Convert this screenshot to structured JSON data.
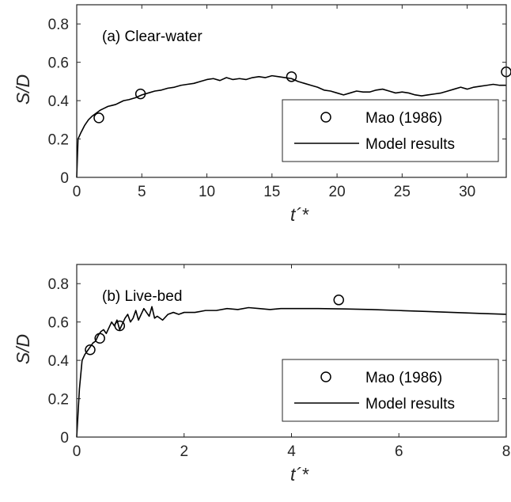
{
  "chart_data": [
    {
      "type": "line",
      "annotation": "(a) Clear-water",
      "xlabel": "t´*",
      "ylabel": "S/D",
      "xlim": [
        0,
        33
      ],
      "ylim": [
        0,
        0.9
      ],
      "xticks": [
        0,
        5,
        10,
        15,
        20,
        25,
        30
      ],
      "yticks": [
        0,
        0.2,
        0.4,
        0.6,
        0.8
      ],
      "legend_position": "lower-right",
      "series": [
        {
          "name": "Mao (1986)",
          "marker": "circle",
          "x": [
            1.7,
            4.9,
            16.5,
            33.0
          ],
          "y": [
            0.31,
            0.435,
            0.525,
            0.55
          ]
        },
        {
          "name": "Model results",
          "marker": "line",
          "x": [
            0,
            0.1,
            0.3,
            0.6,
            0.9,
            1.2,
            1.5,
            1.8,
            2.1,
            2.4,
            2.7,
            3.0,
            3.3,
            3.6,
            4.0,
            4.5,
            5.0,
            5.5,
            6.0,
            6.5,
            7.0,
            7.5,
            8.0,
            8.5,
            9.0,
            9.5,
            10.0,
            10.5,
            11.0,
            11.5,
            12.0,
            12.5,
            13.0,
            13.5,
            14.0,
            14.5,
            15.0,
            15.5,
            16.0,
            16.5,
            17.0,
            17.5,
            18.0,
            18.5,
            19.0,
            19.5,
            20.0,
            20.5,
            21.0,
            21.5,
            22.0,
            22.5,
            23.0,
            23.5,
            24.0,
            24.5,
            25.0,
            25.5,
            26.0,
            26.5,
            27.0,
            27.5,
            28.0,
            28.5,
            29.0,
            29.5,
            30.0,
            30.5,
            31.0,
            31.5,
            32.0,
            32.5,
            33.0
          ],
          "y": [
            0,
            0.2,
            0.23,
            0.27,
            0.3,
            0.32,
            0.335,
            0.35,
            0.36,
            0.37,
            0.375,
            0.38,
            0.39,
            0.4,
            0.405,
            0.415,
            0.43,
            0.44,
            0.45,
            0.455,
            0.465,
            0.47,
            0.48,
            0.485,
            0.49,
            0.5,
            0.51,
            0.515,
            0.505,
            0.52,
            0.51,
            0.515,
            0.51,
            0.52,
            0.525,
            0.52,
            0.53,
            0.525,
            0.52,
            0.515,
            0.5,
            0.49,
            0.48,
            0.47,
            0.455,
            0.45,
            0.44,
            0.43,
            0.44,
            0.45,
            0.445,
            0.445,
            0.455,
            0.46,
            0.45,
            0.44,
            0.445,
            0.44,
            0.43,
            0.425,
            0.43,
            0.435,
            0.44,
            0.45,
            0.46,
            0.47,
            0.46,
            0.47,
            0.475,
            0.48,
            0.485,
            0.48,
            0.48
          ]
        }
      ]
    },
    {
      "type": "line",
      "annotation": "(b) Live-bed",
      "xlabel": "t´*",
      "ylabel": "S/D",
      "xlim": [
        0,
        8
      ],
      "ylim": [
        0,
        0.9
      ],
      "xticks": [
        0,
        2,
        4,
        6,
        8
      ],
      "yticks": [
        0,
        0.2,
        0.4,
        0.6,
        0.8
      ],
      "legend_position": "lower-right",
      "series": [
        {
          "name": "Mao (1986)",
          "marker": "circle",
          "x": [
            0.25,
            0.43,
            0.8,
            4.88
          ],
          "y": [
            0.455,
            0.515,
            0.58,
            0.715
          ]
        },
        {
          "name": "Model results",
          "marker": "line",
          "x": [
            0,
            0.05,
            0.1,
            0.15,
            0.2,
            0.25,
            0.3,
            0.35,
            0.4,
            0.45,
            0.5,
            0.55,
            0.6,
            0.65,
            0.7,
            0.75,
            0.8,
            0.85,
            0.9,
            0.95,
            1.0,
            1.05,
            1.1,
            1.15,
            1.2,
            1.25,
            1.3,
            1.35,
            1.4,
            1.45,
            1.5,
            1.6,
            1.7,
            1.8,
            1.9,
            2.0,
            2.2,
            2.4,
            2.6,
            2.8,
            3.0,
            3.2,
            3.4,
            3.6,
            3.8,
            4.0,
            4.5,
            5.0,
            5.5,
            6.0,
            6.5,
            7.0,
            7.5,
            8.0
          ],
          "y": [
            0,
            0.25,
            0.4,
            0.43,
            0.45,
            0.47,
            0.49,
            0.5,
            0.53,
            0.55,
            0.56,
            0.54,
            0.57,
            0.6,
            0.58,
            0.61,
            0.56,
            0.59,
            0.62,
            0.64,
            0.6,
            0.62,
            0.66,
            0.61,
            0.64,
            0.67,
            0.65,
            0.63,
            0.68,
            0.62,
            0.63,
            0.61,
            0.64,
            0.65,
            0.64,
            0.65,
            0.65,
            0.66,
            0.66,
            0.67,
            0.665,
            0.675,
            0.67,
            0.665,
            0.67,
            0.67,
            0.67,
            0.668,
            0.665,
            0.66,
            0.655,
            0.65,
            0.645,
            0.64
          ]
        }
      ]
    }
  ]
}
